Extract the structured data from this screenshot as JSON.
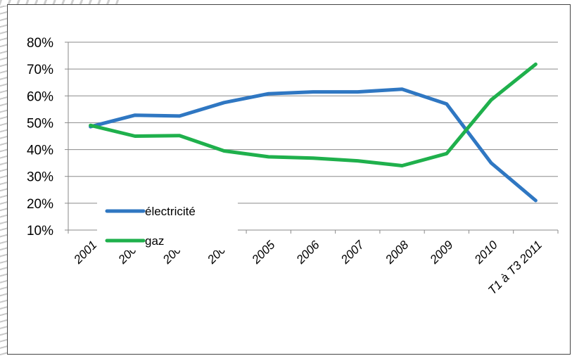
{
  "chart_data": {
    "type": "line",
    "categories": [
      "2001",
      "2002",
      "2003",
      "2004",
      "2005",
      "2006",
      "2007",
      "2008",
      "2009",
      "2010",
      "T1 à T3 2011"
    ],
    "y_ticks": [
      "10%",
      "20%",
      "30%",
      "40%",
      "50%",
      "60%",
      "70%",
      "80%"
    ],
    "ylim": [
      10,
      80
    ],
    "grid": true,
    "legend_position": "bottom-left",
    "series": [
      {
        "name": "électricité",
        "color": "#2f77c2",
        "values": [
          48.5,
          52.8,
          52.5,
          57.5,
          60.8,
          61.5,
          61.5,
          62.5,
          57.0,
          35.0,
          21.0
        ]
      },
      {
        "name": "gaz",
        "color": "#1fb04c",
        "values": [
          49.0,
          45.0,
          45.2,
          39.5,
          37.3,
          36.8,
          35.8,
          34.0,
          38.5,
          58.5,
          71.8
        ]
      }
    ]
  }
}
